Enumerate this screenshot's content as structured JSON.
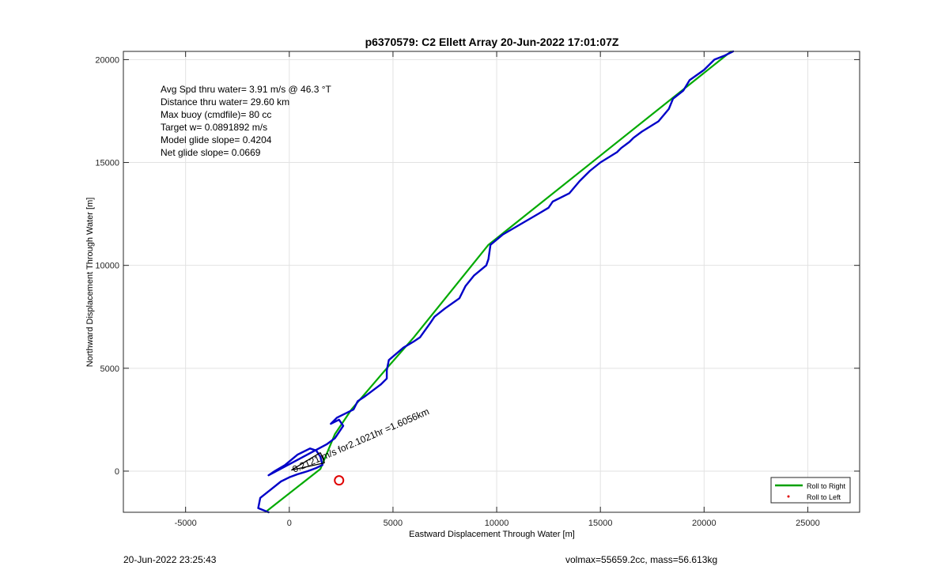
{
  "chart_data": {
    "type": "line",
    "title": "p6370579: C2 Ellett Array 20-Jun-2022 17:01:07Z",
    "xlabel": "Eastward Displacement Through Water [m]",
    "ylabel": "Northward Displacement Through Water [m]",
    "xlim": [
      -8000,
      27500
    ],
    "ylim": [
      -2000,
      20400
    ],
    "xticks": [
      -5000,
      0,
      5000,
      10000,
      15000,
      20000,
      25000
    ],
    "yticks": [
      0,
      5000,
      10000,
      15000,
      20000
    ],
    "grid": true,
    "legend_position": "bottom-right",
    "legend": [
      {
        "label": "Roll to Right",
        "color": "#00a000",
        "style": "line"
      },
      {
        "label": "Roll to Left",
        "color": "#e00000",
        "style": "dot"
      }
    ],
    "info_lines": [
      "Avg Spd thru water=  3.91 m/s @  46.3 °T",
      "Distance thru water= 29.60 km",
      "Max buoy (cmdfile)= 80 cc",
      "Target w= 0.0891892 m/s",
      "Model glide slope= 0.4204",
      "Net glide slope= 0.0669"
    ],
    "annotation": "0.2121 m/s for2.1021hr =1.6056km",
    "series": [
      {
        "name": "Roll to Right",
        "color": "#00aa00",
        "x": [
          -1100,
          1500,
          2200,
          3000,
          4700,
          6000,
          9600,
          21300
        ],
        "y": [
          -1950,
          100,
          1800,
          3000,
          5000,
          6500,
          11000,
          20400
        ]
      },
      {
        "color": "#0000c8",
        "x": [
          -1000,
          -1500,
          -1400,
          -900,
          -400,
          0,
          400,
          900,
          1300,
          1600,
          1500,
          1300,
          1000,
          400,
          -200,
          -700,
          -1000,
          1800,
          2200,
          2600,
          2400,
          2000,
          2300,
          2500,
          3100,
          3300,
          3600,
          4400,
          4700,
          4700,
          4800,
          5500,
          6000,
          6300,
          6800,
          7000,
          7500,
          8200,
          8500,
          8900,
          9500,
          9600,
          9700,
          10300,
          12000,
          12500,
          12700,
          13500,
          14000,
          14500,
          15000,
          15800,
          16000,
          16400,
          16600,
          17000,
          17800,
          18300,
          18500,
          19000,
          19300,
          20000,
          20500,
          21000,
          21400
        ],
        "y": [
          -2000,
          -1800,
          -1300,
          -900,
          -500,
          -300,
          -150,
          0,
          150,
          300,
          700,
          1000,
          1100,
          800,
          300,
          0,
          -200,
          1300,
          1600,
          2200,
          2500,
          2300,
          2600,
          2700,
          3000,
          3400,
          3600,
          4200,
          4500,
          4900,
          5400,
          6000,
          6300,
          6500,
          7200,
          7500,
          7900,
          8400,
          9000,
          9500,
          10000,
          10300,
          11000,
          11500,
          12500,
          12800,
          13100,
          13500,
          14100,
          14600,
          15000,
          15500,
          15700,
          16000,
          16200,
          16500,
          17000,
          17600,
          18100,
          18500,
          19000,
          19500,
          20000,
          20200,
          20400
        ]
      }
    ],
    "marker_circle": {
      "x": 2400,
      "y": -450,
      "color": "#e00000"
    }
  },
  "footer": {
    "left": "20-Jun-2022 23:25:43",
    "right": "volmax=55659.2cc, mass=56.613kg"
  }
}
